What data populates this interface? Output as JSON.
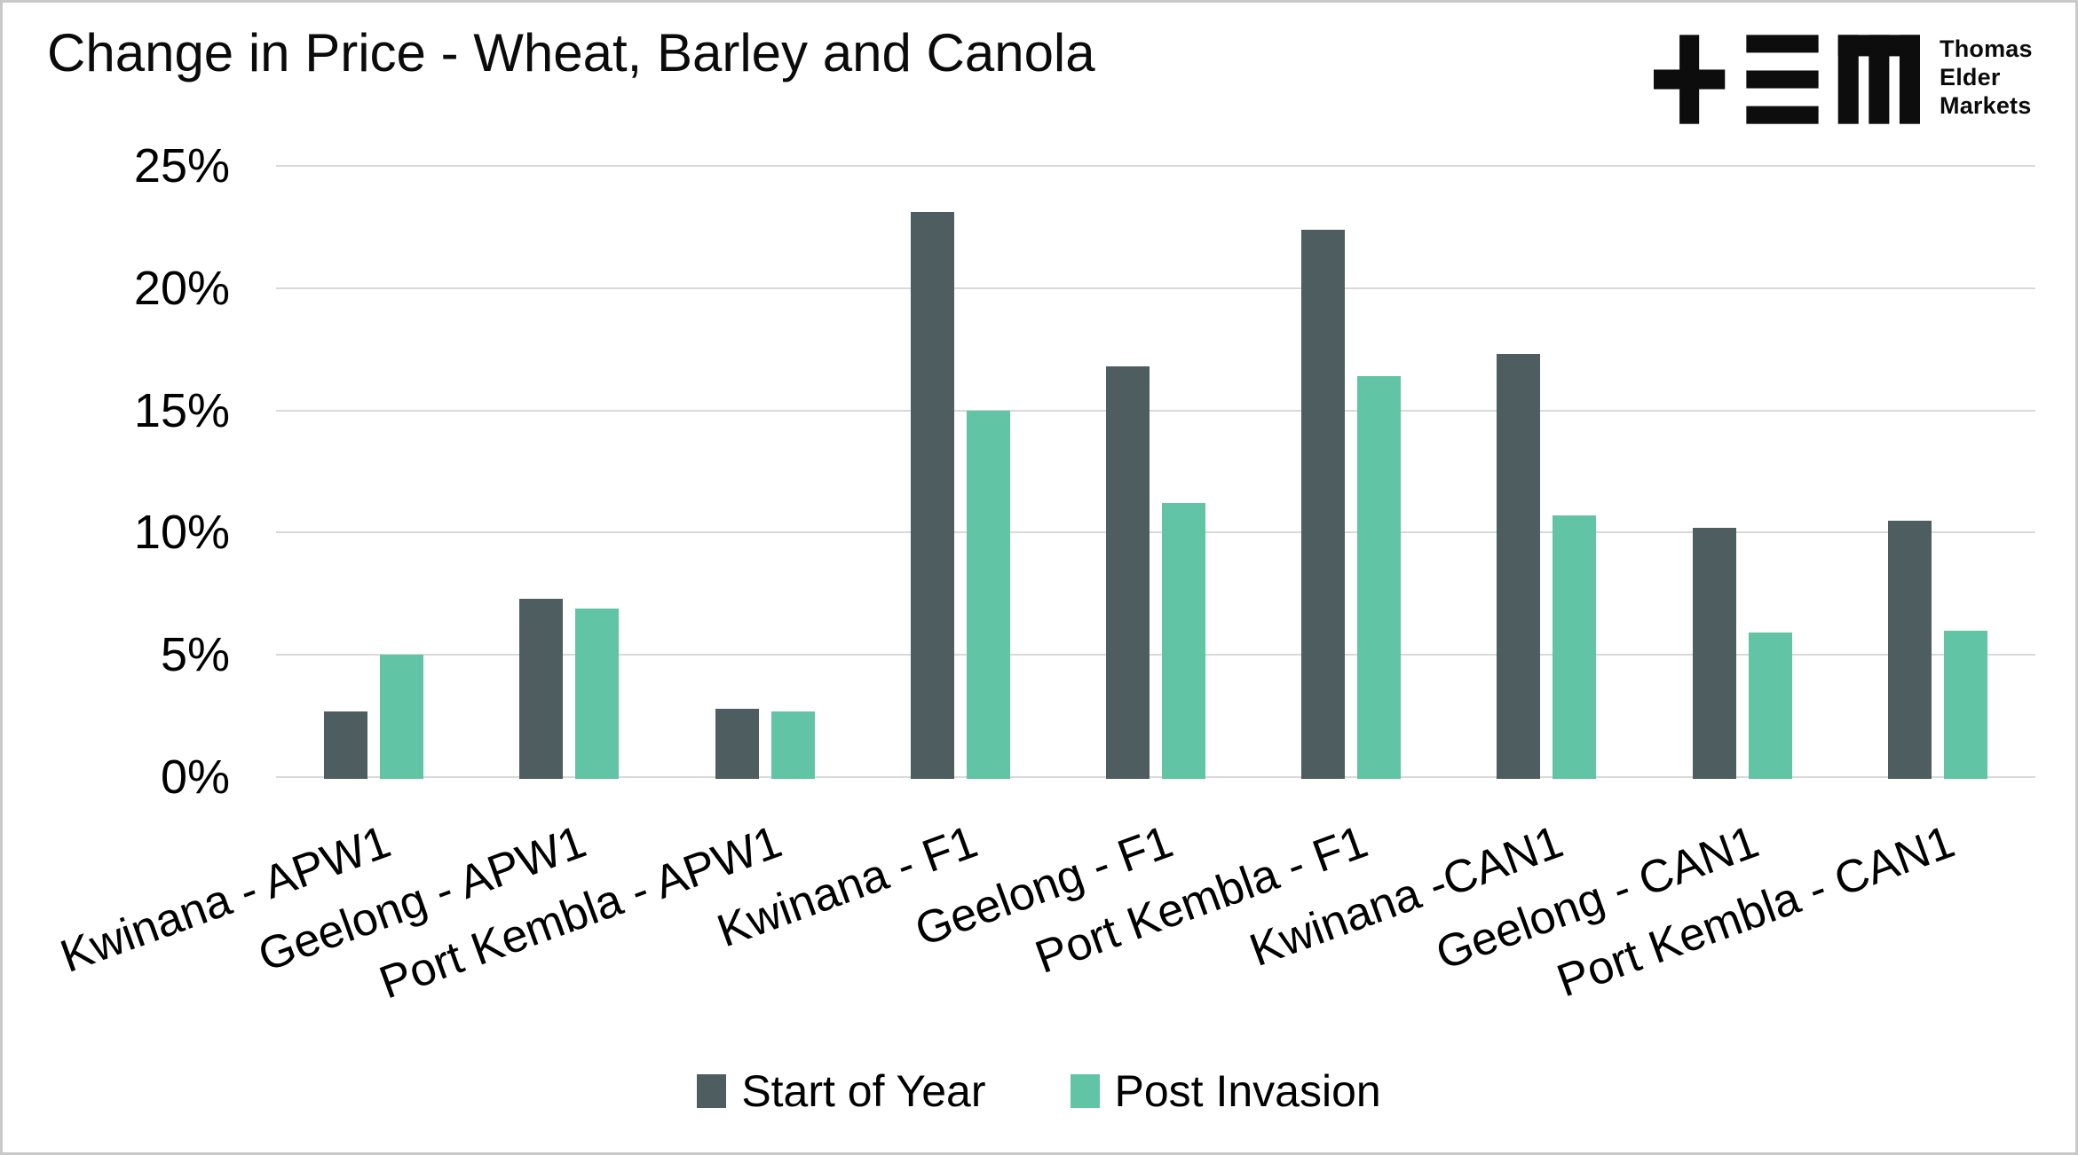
{
  "page": {
    "background": "#FFFFFF",
    "border_color": "#C9C9C9"
  },
  "logo": {
    "mark": "TEM",
    "brand_lines": [
      "Thomas",
      "Elder",
      "Markets"
    ],
    "color": "#0D0D0D"
  },
  "chart_data": {
    "type": "bar",
    "title": "Change in Price - Wheat, Barley and Canola",
    "categories": [
      "Kwinana - APW1",
      "Geelong - APW1",
      "Port Kembla - APW1",
      "Kwinana - F1",
      "Geelong - F1",
      "Port Kembla - F1",
      "Kwinana -CAN1",
      "Geelong - CAN1",
      "Port Kembla - CAN1"
    ],
    "series": [
      {
        "name": "Start of Year",
        "color": "#4D5D60",
        "values": [
          2.7,
          7.3,
          2.8,
          23.1,
          16.8,
          22.4,
          17.3,
          10.2,
          10.5
        ]
      },
      {
        "name": "Post Invasion",
        "color": "#61C4A4",
        "values": [
          5.0,
          6.9,
          2.7,
          15.0,
          11.2,
          16.4,
          10.7,
          5.9,
          6.0
        ]
      }
    ],
    "xlabel": "",
    "ylabel": "",
    "ylim": [
      0,
      25
    ],
    "y_ticks": [
      {
        "value": 25,
        "label": "25%"
      },
      {
        "value": 20,
        "label": "20%"
      },
      {
        "value": 15,
        "label": "15%"
      },
      {
        "value": 10,
        "label": "10%"
      },
      {
        "value": 5,
        "label": "5%"
      },
      {
        "value": 0,
        "label": "0%"
      }
    ],
    "grid": true,
    "gridline_color": "#D9D9D9",
    "legend_position": "bottom"
  }
}
